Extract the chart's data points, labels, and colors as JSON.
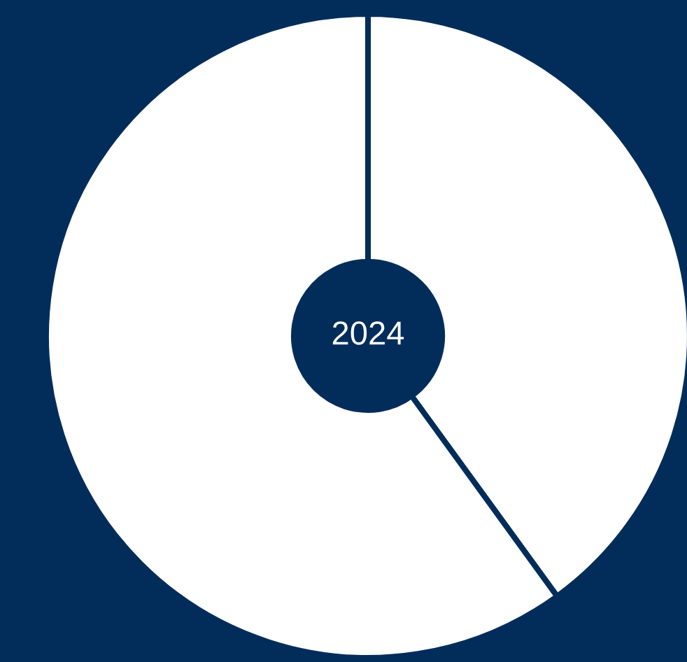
{
  "chart_data": {
    "type": "donut",
    "categories": [
      null,
      null
    ],
    "values": [
      40,
      60
    ],
    "colors": [
      "#ffffff",
      "#ffffff"
    ],
    "annotations": [
      "2024"
    ],
    "legend": false
  }
}
